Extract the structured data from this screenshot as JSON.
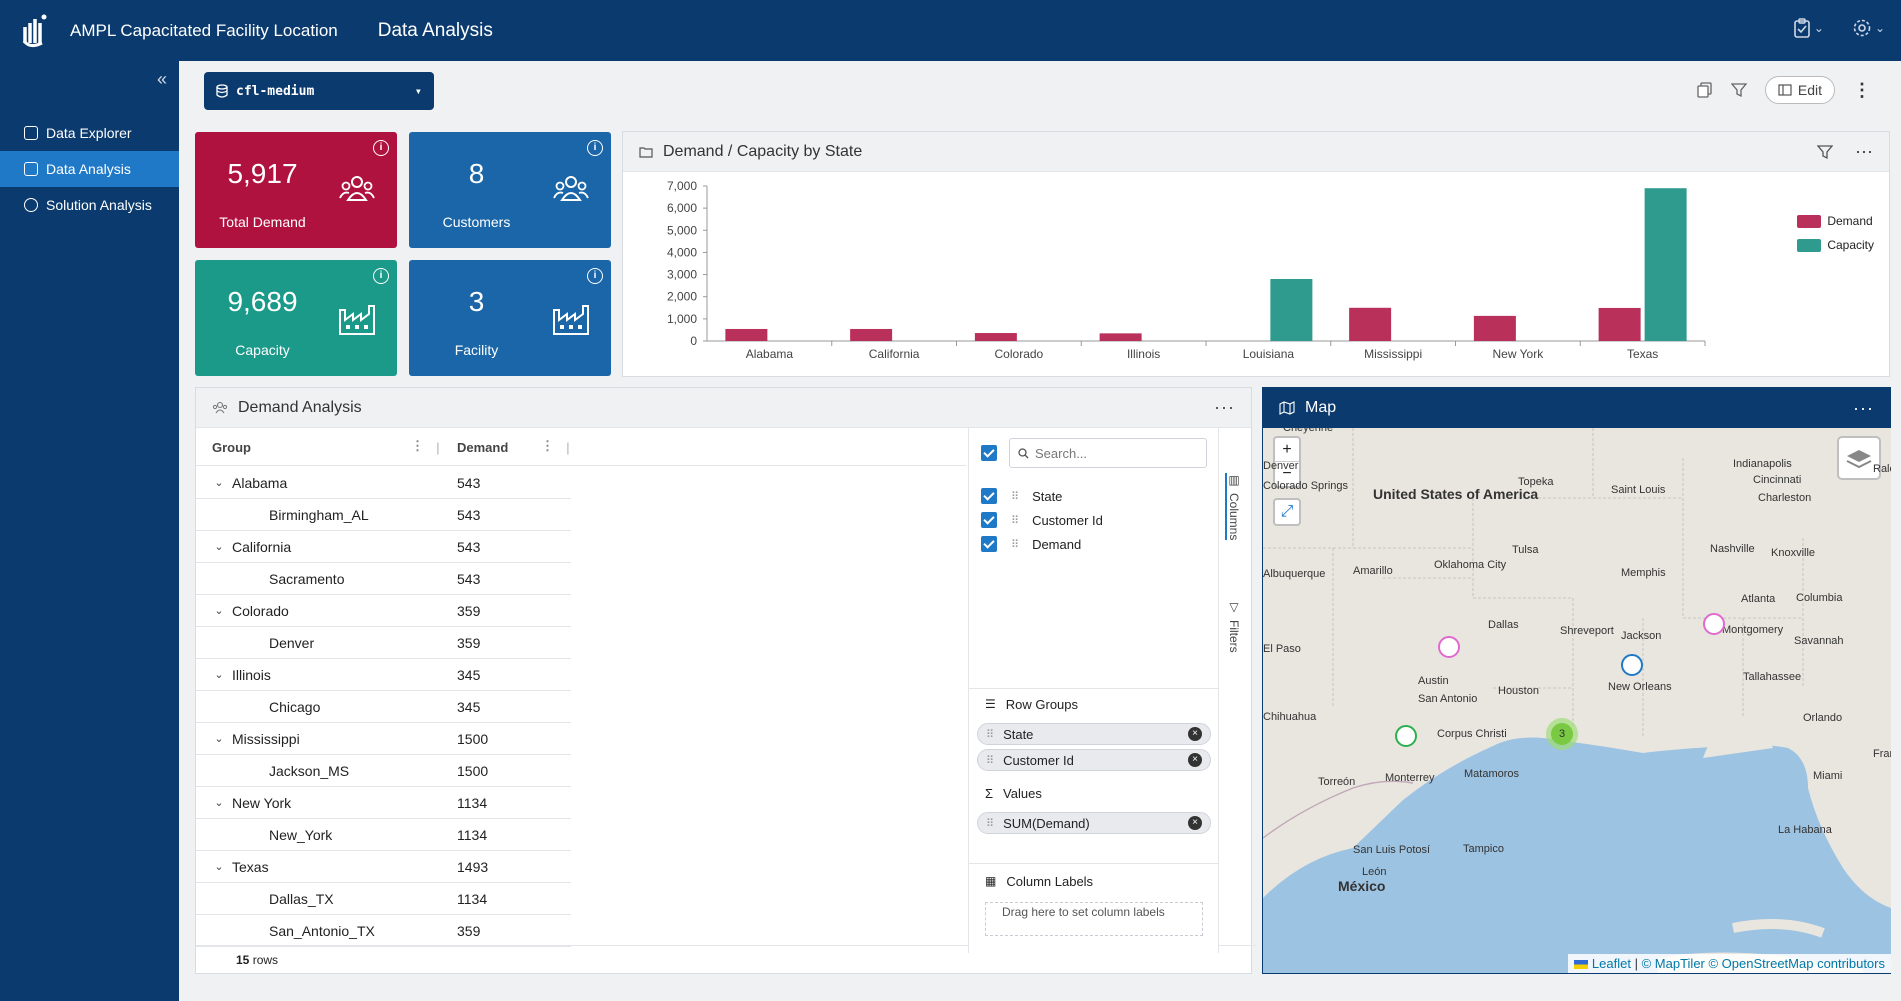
{
  "app": {
    "title": "AMPL Capacitated Facility Location",
    "page": "Data Analysis"
  },
  "sidebar": {
    "items": [
      {
        "label": "Data Explorer"
      },
      {
        "label": "Data Analysis",
        "active": true
      },
      {
        "label": "Solution Analysis"
      }
    ]
  },
  "toolbar": {
    "scenario": "cfl-medium",
    "edit_label": "Edit"
  },
  "kpis": [
    {
      "value": "5,917",
      "label": "Total Demand",
      "color": "#b0123f",
      "icon": "people-icon"
    },
    {
      "value": "8",
      "label": "Customers",
      "color": "#1a66a8",
      "icon": "people-icon"
    },
    {
      "value": "9,689",
      "label": "Capacity",
      "color": "#1b9a8a",
      "icon": "factory-icon"
    },
    {
      "value": "3",
      "label": "Facility",
      "color": "#1a66a8",
      "icon": "factory-icon"
    }
  ],
  "chart_panel": {
    "title": "Demand / Capacity by State"
  },
  "chart_data": {
    "type": "bar",
    "categories": [
      "Alabama",
      "California",
      "Colorado",
      "Illinois",
      "Louisiana",
      "Mississippi",
      "New York",
      "Texas"
    ],
    "series": [
      {
        "name": "Demand",
        "color": "#b9305a",
        "values": [
          543,
          543,
          359,
          345,
          0,
          1500,
          1134,
          1493
        ]
      },
      {
        "name": "Capacity",
        "color": "#2f9a8e",
        "values": [
          0,
          0,
          0,
          0,
          2800,
          0,
          0,
          6900
        ]
      }
    ],
    "ylim": [
      0,
      7000
    ],
    "yticks": [
      "0",
      "1,000",
      "2,000",
      "3,000",
      "4,000",
      "5,000",
      "6,000",
      "7,000"
    ],
    "legend": "right"
  },
  "demand_panel": {
    "title": "Demand Analysis",
    "col_group": "Group",
    "col_demand": "Demand",
    "rows": [
      {
        "label": "Alabama",
        "value": "543",
        "group": true
      },
      {
        "label": "Birmingham_AL",
        "value": "543",
        "group": false
      },
      {
        "label": "California",
        "value": "543",
        "group": true
      },
      {
        "label": "Sacramento",
        "value": "543",
        "group": false
      },
      {
        "label": "Colorado",
        "value": "359",
        "group": true
      },
      {
        "label": "Denver",
        "value": "359",
        "group": false
      },
      {
        "label": "Illinois",
        "value": "345",
        "group": true
      },
      {
        "label": "Chicago",
        "value": "345",
        "group": false
      },
      {
        "label": "Mississippi",
        "value": "1500",
        "group": true
      },
      {
        "label": "Jackson_MS",
        "value": "1500",
        "group": false
      },
      {
        "label": "New York",
        "value": "1134",
        "group": true
      },
      {
        "label": "New_York",
        "value": "1134",
        "group": false
      },
      {
        "label": "Texas",
        "value": "1493",
        "group": true
      },
      {
        "label": "Dallas_TX",
        "value": "1134",
        "group": false
      },
      {
        "label": "San_Antonio_TX",
        "value": "359",
        "group": false
      }
    ],
    "row_count_num": "15",
    "row_count_label": "rows",
    "tool": {
      "search_placeholder": "Search...",
      "columns": [
        "State",
        "Customer Id",
        "Demand"
      ],
      "row_groups_title": "Row Groups",
      "row_groups": [
        "State",
        "Customer Id"
      ],
      "values_title": "Values",
      "values": [
        "SUM(Demand)"
      ],
      "col_labels_title": "Column Labels",
      "col_labels_drop": "Drag here to set column labels",
      "tab_columns": "Columns",
      "tab_filters": "Filters"
    }
  },
  "map_panel": {
    "title": "Map",
    "zoom_in": "+",
    "zoom_out": "−",
    "cluster_count": "3",
    "labels": [
      "Cheyenne",
      "Denver",
      "Colorado Springs",
      "Topeka",
      "Indianapolis",
      "Cincinnati",
      "Saint Louis",
      "Charleston",
      "Tulsa",
      "Oklahoma City",
      "Nashville",
      "Knoxville",
      "Albuquerque",
      "Amarillo",
      "Memphis",
      "Dallas",
      "Shreveport",
      "Jackson",
      "Atlanta",
      "Columbia",
      "Montgomery",
      "Savannah",
      "El Paso",
      "Austin",
      "San Antonio",
      "Houston",
      "New Orleans",
      "Tallahassee",
      "Chihuahua",
      "Corpus Christi",
      "Orlando",
      "Torreón",
      "Monterrey",
      "Matamoros",
      "Miami",
      "La Habana",
      "San Luis Potosí",
      "Tampico",
      "León",
      "Raleigh",
      "Frankfort"
    ],
    "country_us": "United States of America",
    "country_mx": "México",
    "attribution": {
      "leaflet": "Leaflet",
      "sep": "|",
      "rest": "© MapTiler © OpenStreetMap contributors"
    }
  }
}
